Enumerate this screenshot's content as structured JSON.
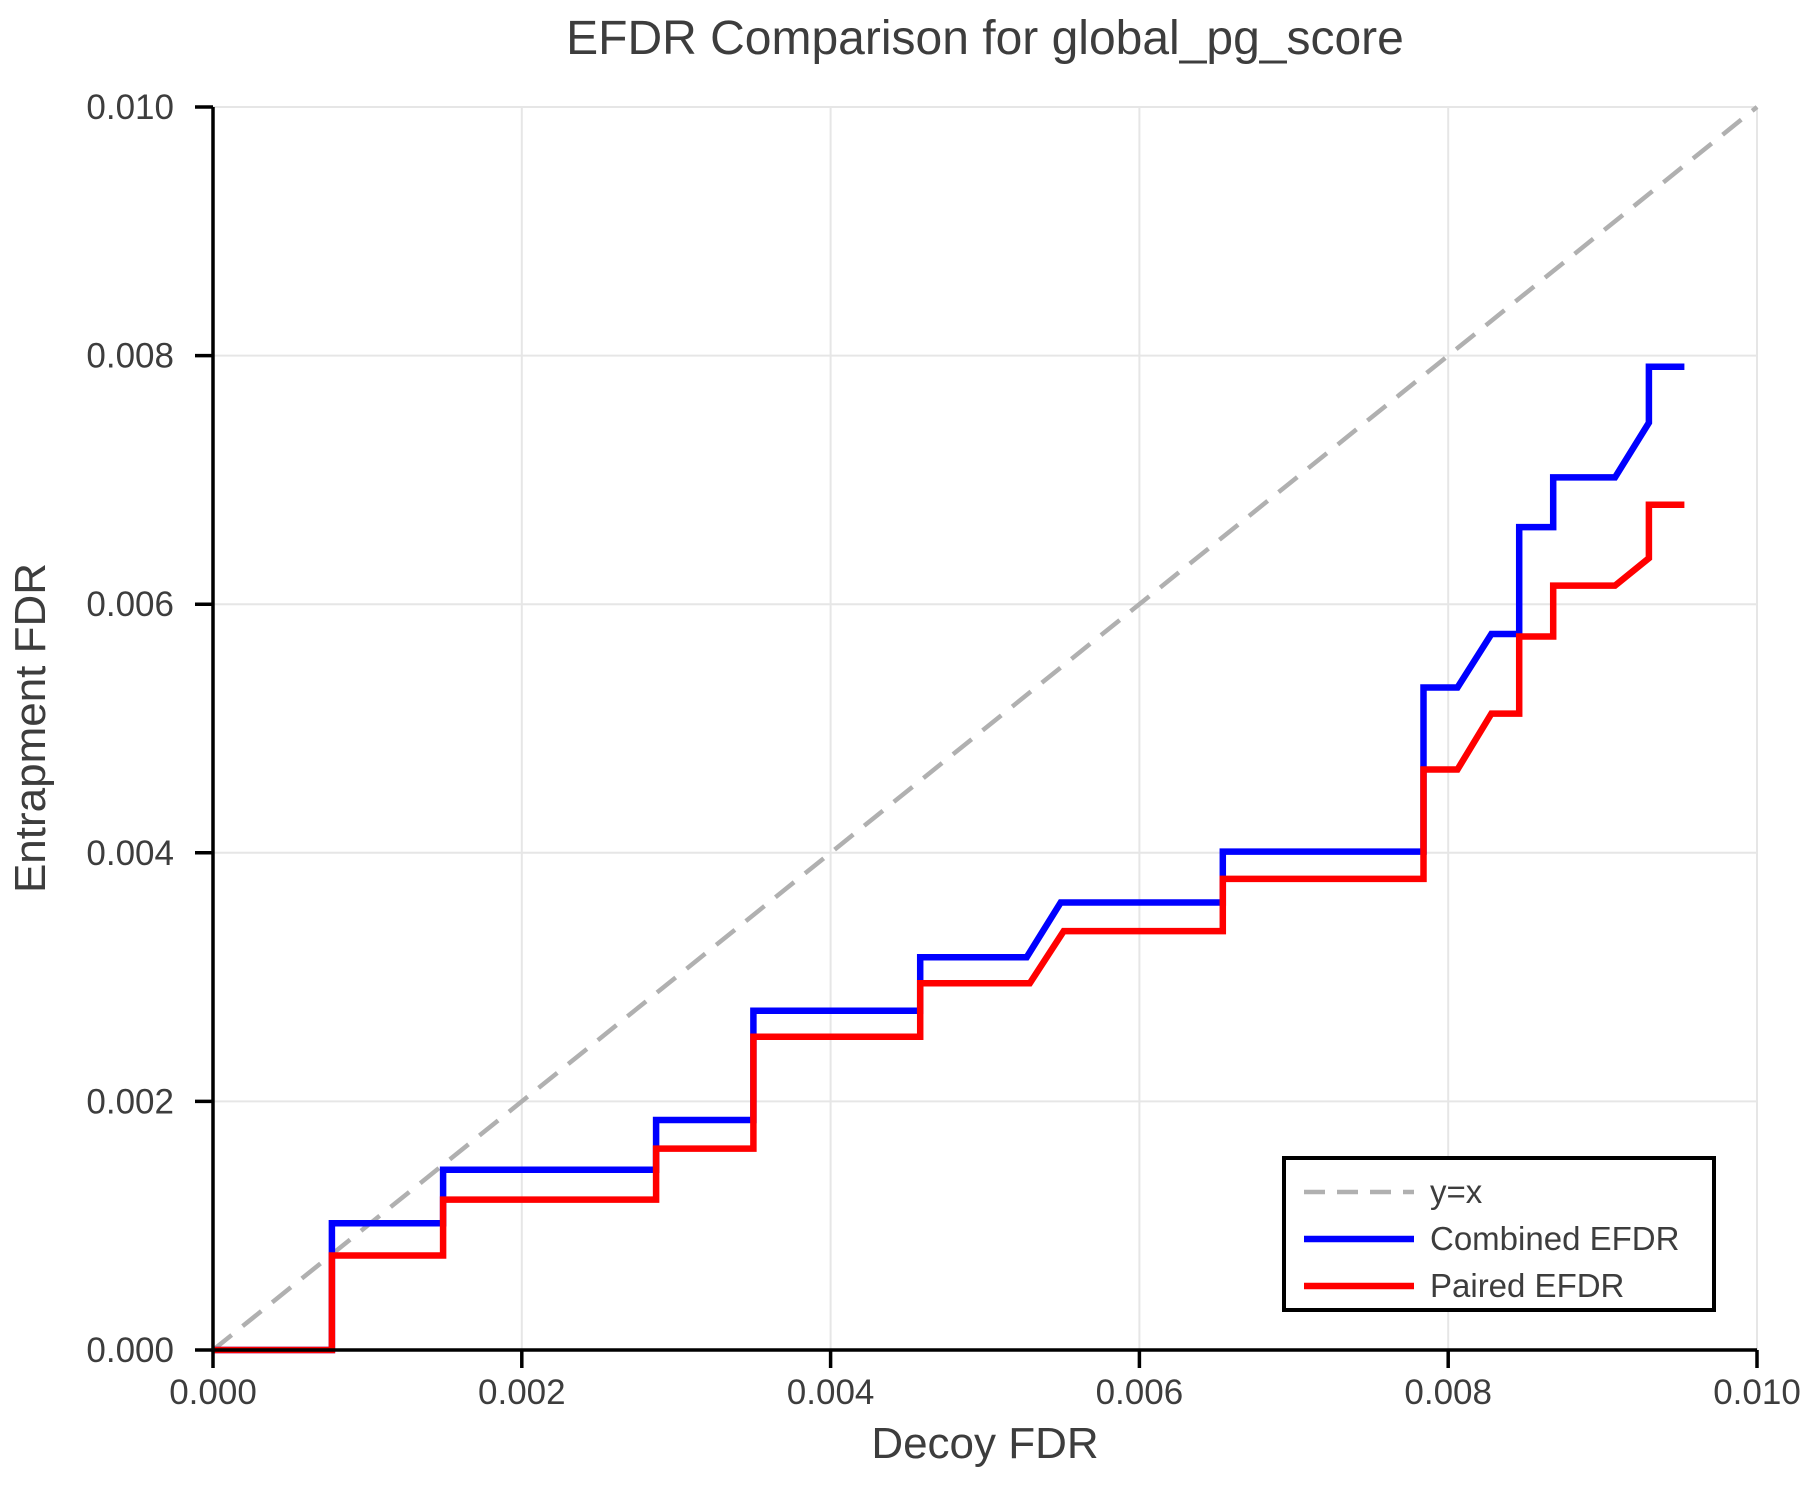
{
  "chart_data": {
    "type": "line",
    "subtype": "step-efdr-comparison",
    "title": "EFDR Comparison for global_pg_score",
    "xlabel": "Decoy FDR",
    "ylabel": "Entrapment FDR",
    "xlim": [
      0.0,
      0.01
    ],
    "ylim": [
      0.0,
      0.01
    ],
    "grid": true,
    "legend_position": "lower right",
    "x_ticks": [
      0.0,
      0.002,
      0.004,
      0.006,
      0.008,
      0.01
    ],
    "x_tick_labels": [
      "0.000",
      "0.002",
      "0.004",
      "0.006",
      "0.008",
      "0.010"
    ],
    "y_ticks": [
      0.0,
      0.002,
      0.004,
      0.006,
      0.008,
      0.01
    ],
    "y_tick_labels": [
      "0.000",
      "0.002",
      "0.004",
      "0.006",
      "0.008",
      "0.010"
    ],
    "colors": {
      "background": "#ffffff",
      "axis": "#000000",
      "grid": "#e6e6e6",
      "text": "#3d3d3d",
      "identity_line": "#b0b0b0",
      "combined_efdr": "#0000ff",
      "paired_efdr": "#ff0000"
    },
    "series": [
      {
        "name": "y=x",
        "color": "#b0b0b0",
        "dashed": true,
        "points": [
          [
            0.0,
            0.0
          ],
          [
            0.01,
            0.01
          ]
        ]
      },
      {
        "name": "Combined EFDR",
        "color": "#0000ff",
        "dashed": false,
        "points": [
          [
            0.0,
            0.0
          ],
          [
            0.00077,
            0.0
          ],
          [
            0.00077,
            0.00102
          ],
          [
            0.00149,
            0.00102
          ],
          [
            0.00149,
            0.00145
          ],
          [
            0.00287,
            0.00145
          ],
          [
            0.00287,
            0.00185
          ],
          [
            0.0035,
            0.00185
          ],
          [
            0.0035,
            0.00273
          ],
          [
            0.00458,
            0.00273
          ],
          [
            0.00458,
            0.00316
          ],
          [
            0.00527,
            0.00316
          ],
          [
            0.00549,
            0.0036
          ],
          [
            0.00654,
            0.0036
          ],
          [
            0.00654,
            0.00401
          ],
          [
            0.00784,
            0.00401
          ],
          [
            0.00784,
            0.00533
          ],
          [
            0.00806,
            0.00533
          ],
          [
            0.00828,
            0.00576
          ],
          [
            0.00846,
            0.00576
          ],
          [
            0.00846,
            0.00662
          ],
          [
            0.00868,
            0.00662
          ],
          [
            0.00868,
            0.00702
          ],
          [
            0.00908,
            0.00702
          ],
          [
            0.0093,
            0.00746
          ],
          [
            0.0093,
            0.00791
          ],
          [
            0.00953,
            0.00791
          ]
        ]
      },
      {
        "name": "Paired EFDR",
        "color": "#ff0000",
        "dashed": false,
        "points": [
          [
            0.0,
            0.0
          ],
          [
            0.00077,
            0.0
          ],
          [
            0.00077,
            0.00076
          ],
          [
            0.00149,
            0.00076
          ],
          [
            0.00149,
            0.00121
          ],
          [
            0.00287,
            0.00121
          ],
          [
            0.00287,
            0.00162
          ],
          [
            0.0035,
            0.00162
          ],
          [
            0.0035,
            0.00252
          ],
          [
            0.00458,
            0.00252
          ],
          [
            0.00458,
            0.00295
          ],
          [
            0.00529,
            0.00295
          ],
          [
            0.00551,
            0.00337
          ],
          [
            0.00654,
            0.00337
          ],
          [
            0.00654,
            0.00379
          ],
          [
            0.00784,
            0.00379
          ],
          [
            0.00784,
            0.00467
          ],
          [
            0.00806,
            0.00467
          ],
          [
            0.00828,
            0.00512
          ],
          [
            0.00846,
            0.00512
          ],
          [
            0.00846,
            0.00574
          ],
          [
            0.00868,
            0.00574
          ],
          [
            0.00868,
            0.00615
          ],
          [
            0.00908,
            0.00615
          ],
          [
            0.0093,
            0.00637
          ],
          [
            0.0093,
            0.0068
          ],
          [
            0.00953,
            0.0068
          ]
        ]
      }
    ]
  }
}
